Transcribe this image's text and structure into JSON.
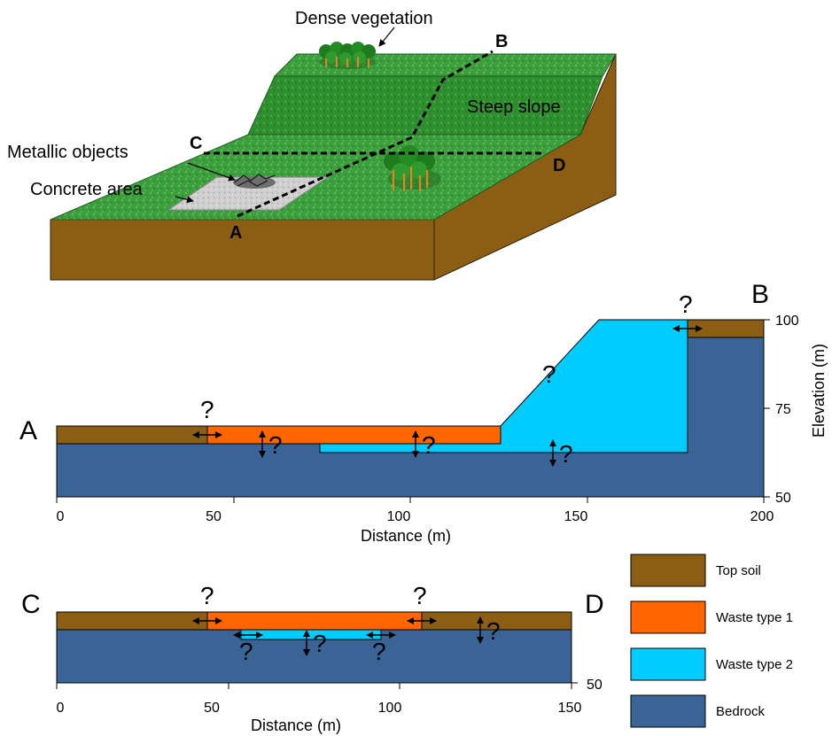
{
  "block_diagram": {
    "labels": {
      "dense_vegetation": "Dense vegetation",
      "steep_slope": "Steep slope",
      "metallic_objects": "Metallic objects",
      "concrete_area": "Concrete area"
    },
    "line_labels": {
      "a": "A",
      "b": "B",
      "c": "C",
      "d": "D"
    }
  },
  "section_ab": {
    "start_label": "A",
    "end_label": "B",
    "x_axis": {
      "title": "Distance (m)",
      "ticks": [
        "0",
        "50",
        "100",
        "150",
        "200"
      ]
    },
    "y_axis": {
      "title": "Elevation (m)",
      "ticks": [
        "50",
        "75",
        "100"
      ]
    },
    "uncertainty_mark": "?"
  },
  "section_cd": {
    "start_label": "C",
    "end_label": "D",
    "x_axis": {
      "title": "Distance (m)",
      "ticks": [
        "0",
        "50",
        "100",
        "150"
      ]
    },
    "y_axis": {
      "ticks": [
        "50"
      ]
    },
    "uncertainty_mark": "?"
  },
  "legend": {
    "items": [
      {
        "label": "Top soil",
        "color": "#8B5E14"
      },
      {
        "label": "Waste type 1",
        "color": "#FF6600"
      },
      {
        "label": "Waste type 2",
        "color": "#00CCFF"
      },
      {
        "label": "Bedrock",
        "color": "#3A6496"
      }
    ]
  },
  "colors": {
    "grass": "#3CA03C",
    "soil": "#8B5E14",
    "waste1": "#FF6600",
    "waste2": "#00CCFF",
    "bedrock": "#3A6496",
    "concrete": "#C8C8C8"
  }
}
